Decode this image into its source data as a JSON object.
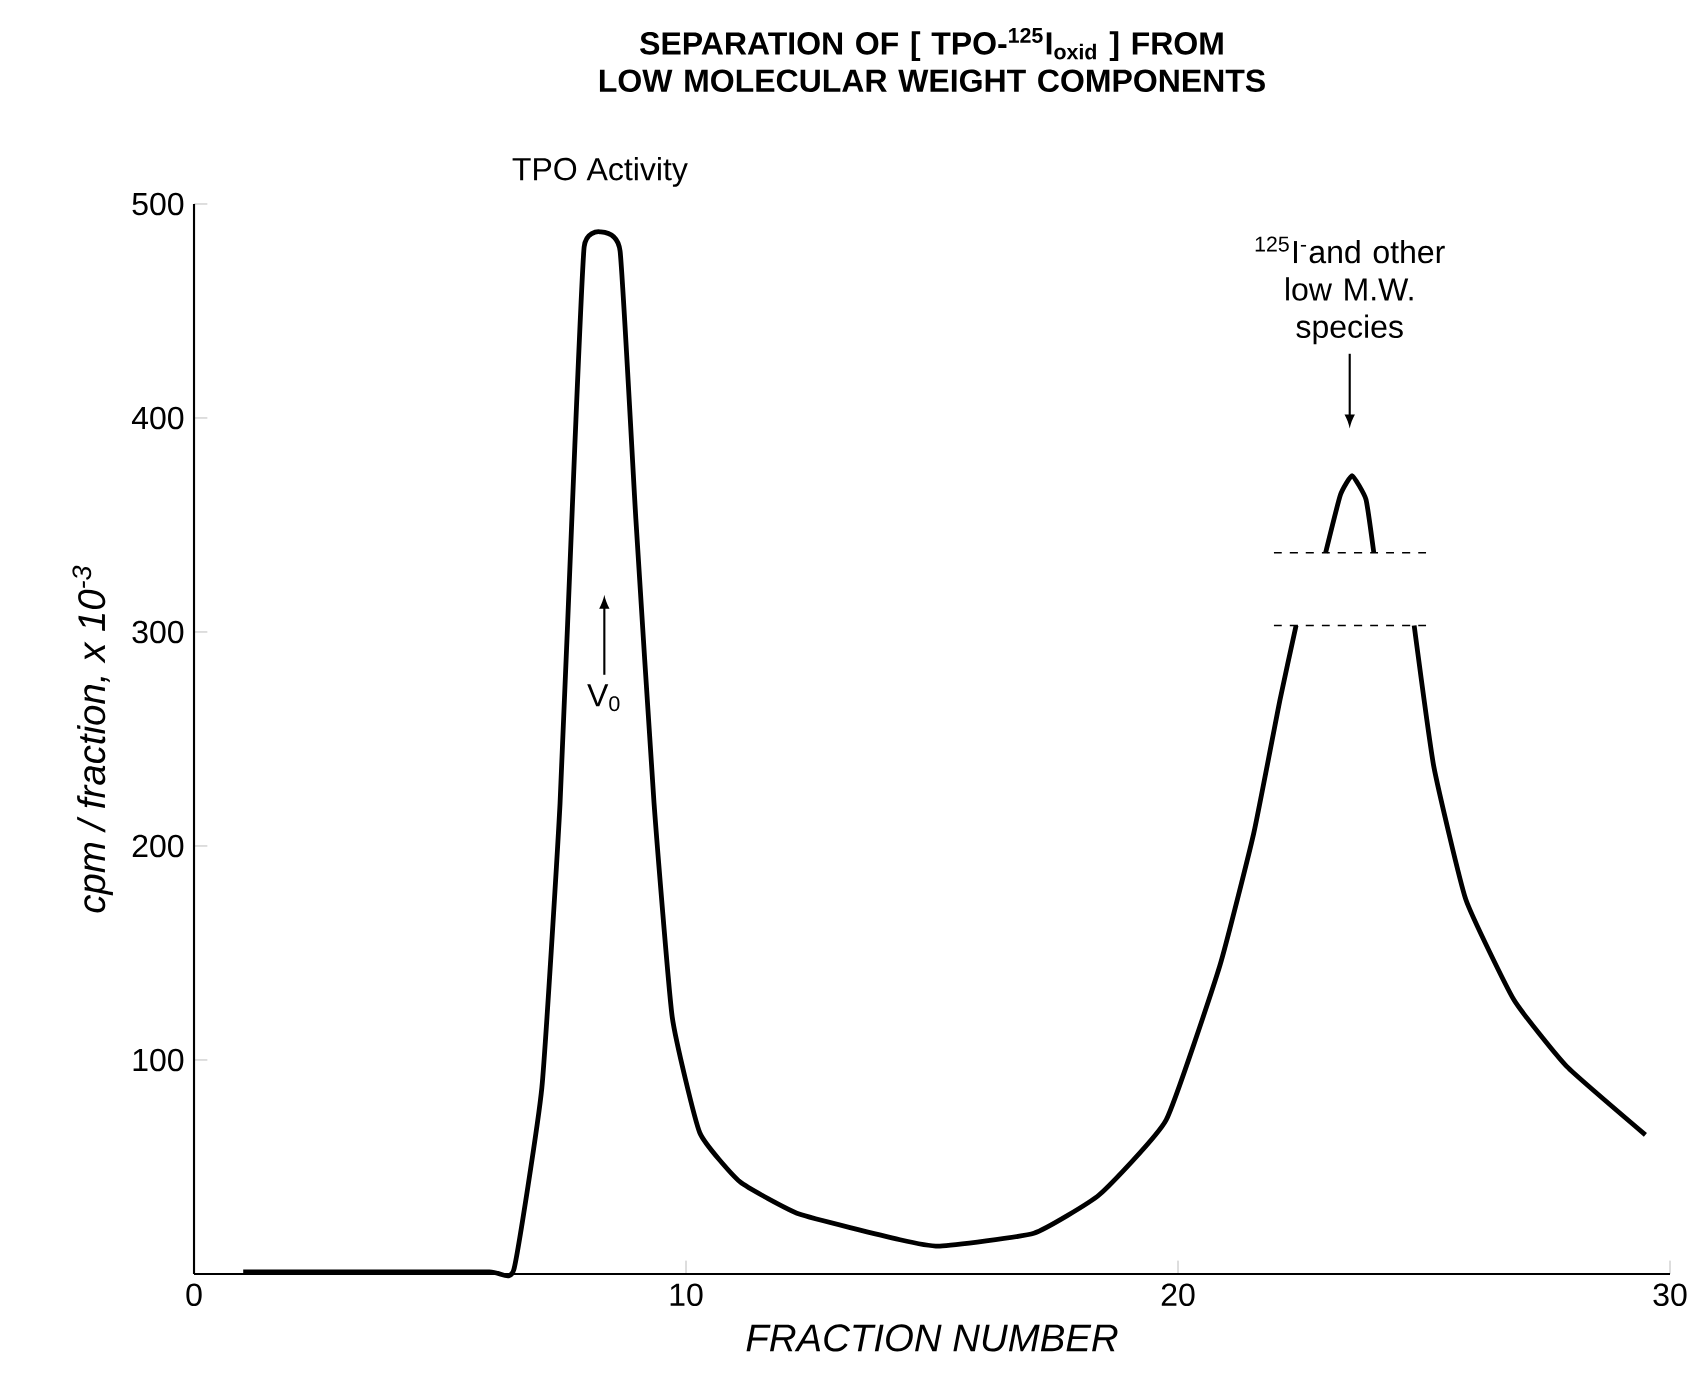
{
  "chart_data": {
    "type": "line",
    "title": "SEPARATION OF [ TPO-$^{125}$I$_{oxid}$ ] FROM LOW MOLECULAR WEIGHT COMPONENTS",
    "xlabel": "FRACTION NUMBER",
    "ylabel": "cpm / fraction, x 10$^{-3}$",
    "xlim": [
      0,
      30
    ],
    "ylim": [
      0,
      500
    ],
    "xticks": [
      0,
      10,
      20,
      30
    ],
    "yticks": [
      100,
      200,
      300,
      400,
      500
    ],
    "line_style": "solid",
    "series": [
      {
        "color": "#000000",
        "x": [
          1,
          3,
          6,
          6.5,
          7.07,
          7.44,
          7.74,
          7.93,
          8.25,
          8.66,
          8.98,
          9.35,
          9.72,
          10.28,
          11.1,
          12.3,
          14.35,
          15.16,
          17.07,
          18.4,
          19.76,
          20.85,
          21.54,
          22.07,
          22.4,
          23.6,
          24.8,
          25.2,
          25.85,
          26.83,
          27.9,
          29.5
        ],
        "values": [
          1,
          1,
          1,
          2,
          87,
          220,
          387,
          480,
          487,
          478,
          353,
          220,
          120,
          66,
          43,
          28,
          16,
          13,
          19,
          37,
          72,
          144,
          206,
          268,
          303,
          null,
          303,
          237,
          175,
          128,
          97,
          65
        ]
      },
      {
        "color": "#000000",
        "x": [
          23.0,
          23.3,
          23.54,
          23.82,
          23.98
        ],
        "values": [
          337,
          364,
          373,
          362,
          337
        ]
      },
      {
        "color": "#000000",
        "line_style": "dashed",
        "x": [
          21.95,
          25.1
        ],
        "values": [
          337,
          337
        ]
      },
      {
        "color": "#000000",
        "line_style": "dashed",
        "x": [
          21.95,
          25.1
        ],
        "values": [
          303,
          303
        ]
      }
    ],
    "annotations": [
      "TPO Activity",
      "V$_{0}$",
      "$^{125}$I$^{-}$and other low M.W. species"
    ]
  }
}
